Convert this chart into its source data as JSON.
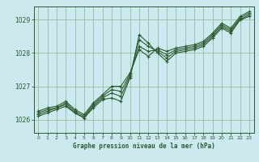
{
  "title": "Graphe pression niveau de la mer (hPa)",
  "bg_color": "#cde9f0",
  "grid_color": "#99bb99",
  "line_color": "#2d5a2d",
  "marker_color": "#2d5a2d",
  "xlim": [
    -0.5,
    23.5
  ],
  "ylim": [
    1025.6,
    1029.4
  ],
  "yticks": [
    1026,
    1027,
    1028,
    1029
  ],
  "xticks": [
    0,
    1,
    2,
    3,
    4,
    5,
    6,
    7,
    8,
    9,
    10,
    11,
    12,
    13,
    14,
    15,
    16,
    17,
    18,
    19,
    20,
    21,
    22,
    23
  ],
  "series": [
    [
      1026.1,
      1026.2,
      1026.3,
      1026.4,
      1026.2,
      1026.05,
      1026.35,
      1026.6,
      1026.65,
      1026.55,
      1027.25,
      1028.55,
      1028.3,
      1028.0,
      1027.75,
      1028.0,
      1028.05,
      1028.1,
      1028.2,
      1028.45,
      1028.75,
      1028.6,
      1029.0,
      1029.1
    ],
    [
      1026.15,
      1026.25,
      1026.35,
      1026.45,
      1026.2,
      1026.05,
      1026.4,
      1026.65,
      1026.8,
      1026.7,
      1027.3,
      1028.4,
      1028.2,
      1028.05,
      1027.85,
      1028.05,
      1028.1,
      1028.15,
      1028.25,
      1028.5,
      1028.8,
      1028.65,
      1029.0,
      1029.15
    ],
    [
      1026.2,
      1026.3,
      1026.35,
      1026.5,
      1026.25,
      1026.1,
      1026.45,
      1026.7,
      1026.9,
      1026.85,
      1027.35,
      1028.2,
      1028.05,
      1028.1,
      1027.95,
      1028.1,
      1028.15,
      1028.2,
      1028.3,
      1028.55,
      1028.85,
      1028.7,
      1029.05,
      1029.2
    ],
    [
      1026.25,
      1026.35,
      1026.4,
      1026.55,
      1026.3,
      1026.15,
      1026.5,
      1026.75,
      1027.0,
      1027.0,
      1027.4,
      1028.1,
      1027.9,
      1028.15,
      1028.05,
      1028.15,
      1028.2,
      1028.25,
      1028.35,
      1028.6,
      1028.9,
      1028.75,
      1029.1,
      1029.25
    ]
  ]
}
